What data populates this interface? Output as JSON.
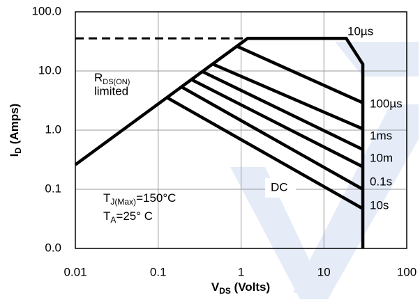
{
  "chart_data": {
    "type": "line",
    "xscale": "log",
    "yscale": "log",
    "xlim": [
      0.01,
      100
    ],
    "ylim": [
      0.01,
      100
    ],
    "xticks": [
      0.01,
      0.1,
      1,
      10,
      100
    ],
    "yticks": [
      {
        "value": 0.01,
        "label": "0.0"
      },
      {
        "value": 0.1,
        "label": "0.1"
      },
      {
        "value": 1,
        "label": "1.0"
      },
      {
        "value": 10,
        "label": "10.0"
      },
      {
        "value": 100,
        "label": "100.0"
      }
    ],
    "x_label": {
      "main": "V",
      "sub": "DS",
      "rest": " (Volts)"
    },
    "y_label": {
      "main": "I",
      "sub": "D",
      "rest": " (Amps)"
    },
    "grid": true,
    "color": "#000000",
    "series": [
      {
        "name": "10µs",
        "x": [
          0.01,
          1.2,
          18.6,
          29.5,
          29.5
        ],
        "values": [
          0.26,
          35.6,
          35.6,
          13,
          0.01
        ]
      },
      {
        "name": "100µs",
        "x": [
          0.9,
          29.5
        ],
        "values": [
          26,
          2.9
        ]
      },
      {
        "name": "1ms",
        "x": [
          0.46,
          29.5
        ],
        "values": [
          13,
          1.05
        ]
      },
      {
        "name": "10m",
        "x": [
          0.34,
          29.5
        ],
        "values": [
          9.8,
          0.47
        ]
      },
      {
        "name": "0.1s",
        "x": [
          0.25,
          29.5
        ],
        "values": [
          7.2,
          0.24
        ]
      },
      {
        "name": "10s",
        "x": [
          0.19,
          29.5
        ],
        "values": [
          5.4,
          0.1
        ]
      },
      {
        "name": "DC",
        "x": [
          0.13,
          29.5
        ],
        "values": [
          3.5,
          0.047
        ]
      }
    ],
    "dashed_line": {
      "x": [
        0.01,
        1.2
      ],
      "values": [
        35.6,
        35.6
      ]
    },
    "annotations": {
      "rds": {
        "main": "R",
        "sub": "DS(ON)"
      },
      "limited": "limited",
      "tj": {
        "main": "T",
        "sub": "J(Max)",
        "rest": "=150°C"
      },
      "ta": {
        "main": "T",
        "sub": "A",
        "rest": "=25°  C"
      }
    }
  }
}
